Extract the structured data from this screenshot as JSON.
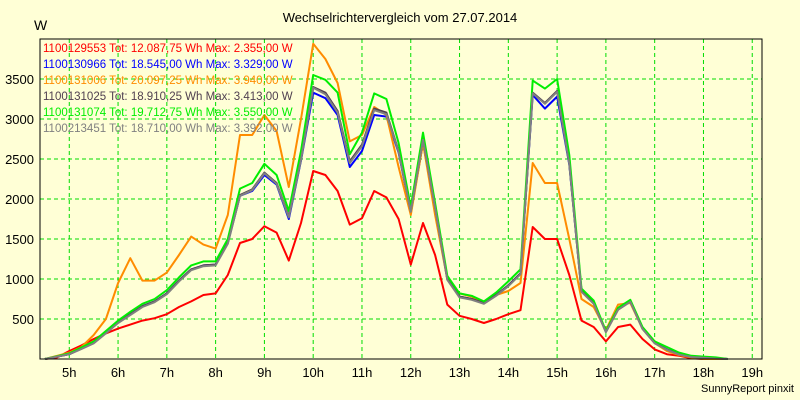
{
  "chart_data": {
    "type": "line",
    "title": "Wechselrichtervergleich vom 27.07.2014",
    "ylabel": "W",
    "xlabel": "",
    "ylim": [
      0,
      4000
    ],
    "xlim": [
      4.4,
      19.2
    ],
    "yticks": [
      500,
      1000,
      1500,
      2000,
      2500,
      3000,
      3500
    ],
    "ytick_labels": [
      "500",
      "1000",
      "1500",
      "2000",
      "2500",
      "3000",
      "3500"
    ],
    "xticks": [
      5,
      6,
      7,
      8,
      9,
      10,
      11,
      12,
      13,
      14,
      15,
      16,
      17,
      18,
      19
    ],
    "xtick_labels": [
      "5h",
      "6h",
      "7h",
      "8h",
      "9h",
      "10h",
      "11h",
      "12h",
      "13h",
      "14h",
      "15h",
      "16h",
      "17h",
      "18h",
      "19h"
    ],
    "grid": true,
    "legend_position": "top-left",
    "x": [
      4.5,
      4.75,
      5,
      5.25,
      5.5,
      5.75,
      6,
      6.25,
      6.5,
      6.75,
      7,
      7.25,
      7.5,
      7.75,
      8,
      8.25,
      8.5,
      8.75,
      9,
      9.25,
      9.5,
      9.75,
      10,
      10.25,
      10.5,
      10.75,
      11,
      11.25,
      11.5,
      11.75,
      12,
      12.25,
      12.5,
      12.75,
      13,
      13.25,
      13.5,
      13.75,
      14,
      14.25,
      14.5,
      14.75,
      15,
      15.25,
      15.5,
      15.75,
      16,
      16.25,
      16.5,
      16.75,
      17,
      17.25,
      17.5,
      17.75,
      18,
      18.25,
      18.5
    ],
    "series": [
      {
        "name": "1100129553",
        "legend": "1100129553 Tot: 12.087,75 Wh Max: 2.355,00 W",
        "color": "#FF0000",
        "values": [
          0,
          20,
          100,
          170,
          250,
          320,
          380,
          430,
          480,
          510,
          560,
          650,
          720,
          800,
          820,
          1050,
          1450,
          1500,
          1660,
          1580,
          1230,
          1700,
          2350,
          2300,
          2100,
          1680,
          1760,
          2100,
          2020,
          1750,
          1180,
          1700,
          1300,
          680,
          540,
          500,
          450,
          500,
          560,
          610,
          1650,
          1500,
          1500,
          1050,
          480,
          400,
          220,
          400,
          430,
          250,
          120,
          60,
          40,
          10,
          0,
          0,
          0
        ]
      },
      {
        "name": "1100130966",
        "legend": "1100130966 Tot: 18.545,00 Wh Max: 3.329,00 W",
        "color": "#0000FF",
        "values": [
          0,
          30,
          60,
          130,
          200,
          330,
          460,
          560,
          660,
          720,
          820,
          980,
          1120,
          1170,
          1180,
          1450,
          2040,
          2100,
          2300,
          2180,
          1750,
          2480,
          3330,
          3260,
          3050,
          2400,
          2600,
          3050,
          3030,
          2580,
          1830,
          2700,
          1880,
          1000,
          780,
          750,
          700,
          800,
          920,
          1070,
          3300,
          3130,
          3280,
          2430,
          850,
          700,
          340,
          620,
          720,
          380,
          200,
          120,
          60,
          30,
          20,
          10,
          0
        ]
      },
      {
        "name": "1100131006",
        "legend": "1100131006 Tot: 20.097,25 Wh Max: 3.940,00 W",
        "color": "#FF8C00",
        "values": [
          0,
          40,
          80,
          150,
          300,
          500,
          950,
          1260,
          980,
          980,
          1080,
          1300,
          1530,
          1430,
          1380,
          1800,
          2800,
          2800,
          3050,
          2850,
          2150,
          3000,
          3940,
          3750,
          3450,
          2720,
          2800,
          3150,
          3050,
          2400,
          1800,
          2700,
          1800,
          1000,
          820,
          780,
          700,
          800,
          850,
          950,
          2450,
          2200,
          2200,
          1500,
          750,
          650,
          360,
          680,
          700,
          380,
          200,
          100,
          50,
          20,
          0,
          0,
          0
        ]
      },
      {
        "name": "1100131025",
        "legend": "1100131025 Tot: 18.910,25 Wh Max: 3.413,00 W",
        "color": "#504050",
        "values": [
          0,
          30,
          60,
          130,
          200,
          330,
          460,
          560,
          660,
          720,
          820,
          980,
          1120,
          1170,
          1180,
          1450,
          2050,
          2120,
          2330,
          2200,
          1780,
          2500,
          3400,
          3330,
          3100,
          2470,
          2680,
          3130,
          3080,
          2600,
          1850,
          2750,
          1900,
          1000,
          780,
          750,
          700,
          800,
          920,
          1070,
          3330,
          3200,
          3350,
          2450,
          850,
          700,
          340,
          620,
          720,
          380,
          200,
          120,
          60,
          30,
          20,
          10,
          0
        ]
      },
      {
        "name": "1100131074",
        "legend": "1100131074 Tot: 19.712,75 Wh Max: 3.550,00 W",
        "color": "#00EE00",
        "values": [
          0,
          35,
          70,
          145,
          220,
          350,
          480,
          590,
          690,
          750,
          860,
          1020,
          1170,
          1220,
          1220,
          1500,
          2130,
          2200,
          2440,
          2300,
          1850,
          2600,
          3550,
          3490,
          3330,
          2560,
          2830,
          3320,
          3250,
          2700,
          1900,
          2830,
          1950,
          1040,
          820,
          790,
          720,
          830,
          970,
          1120,
          3480,
          3380,
          3500,
          2550,
          880,
          730,
          350,
          640,
          740,
          400,
          220,
          150,
          80,
          40,
          30,
          20,
          0
        ]
      },
      {
        "name": "1100213451",
        "legend": "1100213451 Tot: 18.710,00 Wh Max: 3.392,00 W",
        "color": "#808080",
        "values": [
          0,
          30,
          60,
          125,
          195,
          320,
          450,
          550,
          650,
          710,
          810,
          970,
          1110,
          1160,
          1170,
          1440,
          2040,
          2110,
          2320,
          2190,
          1770,
          2490,
          3390,
          3310,
          3080,
          2450,
          2660,
          3110,
          3060,
          2590,
          1840,
          2740,
          1890,
          990,
          770,
          740,
          690,
          790,
          910,
          1060,
          3320,
          3190,
          3340,
          2440,
          840,
          690,
          335,
          615,
          715,
          375,
          195,
          115,
          55,
          25,
          15,
          5,
          0
        ]
      }
    ]
  },
  "footer": "SunnyReport pinxit"
}
